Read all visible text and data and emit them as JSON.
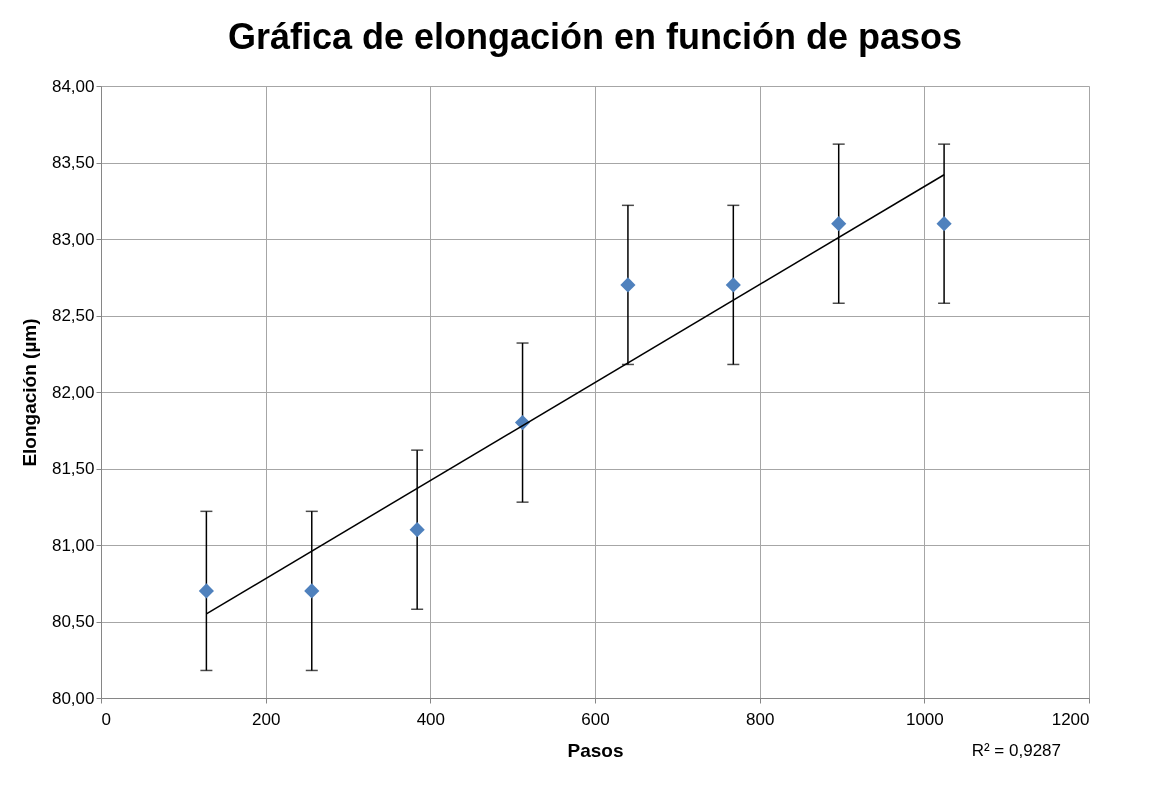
{
  "chart_data": {
    "type": "scatter",
    "title": "Gráfica de elongación en función de pasos",
    "xlabel": "Pasos",
    "ylabel": "Elongación  (µm)",
    "x": [
      128,
      256,
      384,
      512,
      640,
      768,
      896,
      1024
    ],
    "series": [
      {
        "color": "#4f81bd",
        "values": [
          80.7,
          80.7,
          81.1,
          81.8,
          82.7,
          82.7,
          83.1,
          83.1
        ],
        "errors": [
          0.52,
          0.52,
          0.52,
          0.52,
          0.52,
          0.52,
          0.52,
          0.52
        ],
        "marker": "diamond"
      },
      {
        "type": "line",
        "color": "#000000",
        "x": [
          128,
          1024
        ],
        "values": [
          80.55,
          83.42
        ],
        "line_style": "solid"
      }
    ],
    "xlim": [
      0,
      1200
    ],
    "xticks": [
      0,
      200,
      400,
      600,
      800,
      1000,
      1200
    ],
    "ylim": [
      80,
      84
    ],
    "yticks": [
      {
        "value": 80,
        "label": "80,00"
      },
      {
        "value": 80.5,
        "label": "80,50"
      },
      {
        "value": 81,
        "label": "81,00"
      },
      {
        "value": 81.5,
        "label": "81,50"
      },
      {
        "value": 82,
        "label": "82,00"
      },
      {
        "value": 82.5,
        "label": "82,50"
      },
      {
        "value": 83,
        "label": "83,00"
      },
      {
        "value": 83.5,
        "label": "83,50"
      },
      {
        "value": 84,
        "label": "84,00"
      }
    ],
    "grid": true,
    "annotations": [
      "R² = 0,9287"
    ]
  }
}
